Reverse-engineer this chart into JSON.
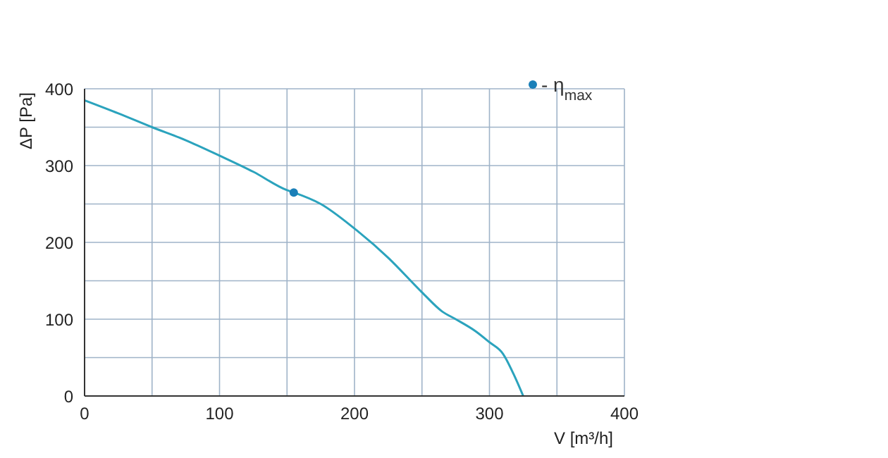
{
  "chart_data": {
    "type": "line",
    "xlabel": "V [m³/h]",
    "ylabel": "ΔP [Pa]",
    "xlim": [
      0,
      400
    ],
    "ylim": [
      0,
      400
    ],
    "xticks": [
      0,
      {
        "value": 50,
        "label": null
      },
      100,
      {
        "value": 150,
        "label": null
      },
      200,
      {
        "value": 250,
        "label": null
      },
      300,
      {
        "value": 350,
        "label": null
      },
      400
    ],
    "yticks": [
      0,
      {
        "value": 50,
        "label": null
      },
      100,
      {
        "value": 150,
        "label": null
      },
      200,
      {
        "value": 250,
        "label": null
      },
      300,
      {
        "value": 350,
        "label": null
      },
      400
    ],
    "grid": true,
    "legend": "top right",
    "series": [
      {
        "color": "#2ba3bd",
        "x": [
          0,
          25,
          50,
          75,
          100,
          125,
          150,
          155,
          175,
          200,
          225,
          250,
          265,
          275,
          290,
          300,
          310,
          318,
          325
        ],
        "values": [
          385,
          368,
          350,
          333,
          313,
          292,
          268,
          265,
          250,
          218,
          180,
          135,
          110,
          100,
          84,
          70,
          55,
          28,
          0
        ]
      },
      {
        "type": "scatter",
        "name": "- η$_{max}$",
        "color": "#1a7fb8",
        "x": [
          155
        ],
        "values": [
          265
        ]
      }
    ]
  }
}
